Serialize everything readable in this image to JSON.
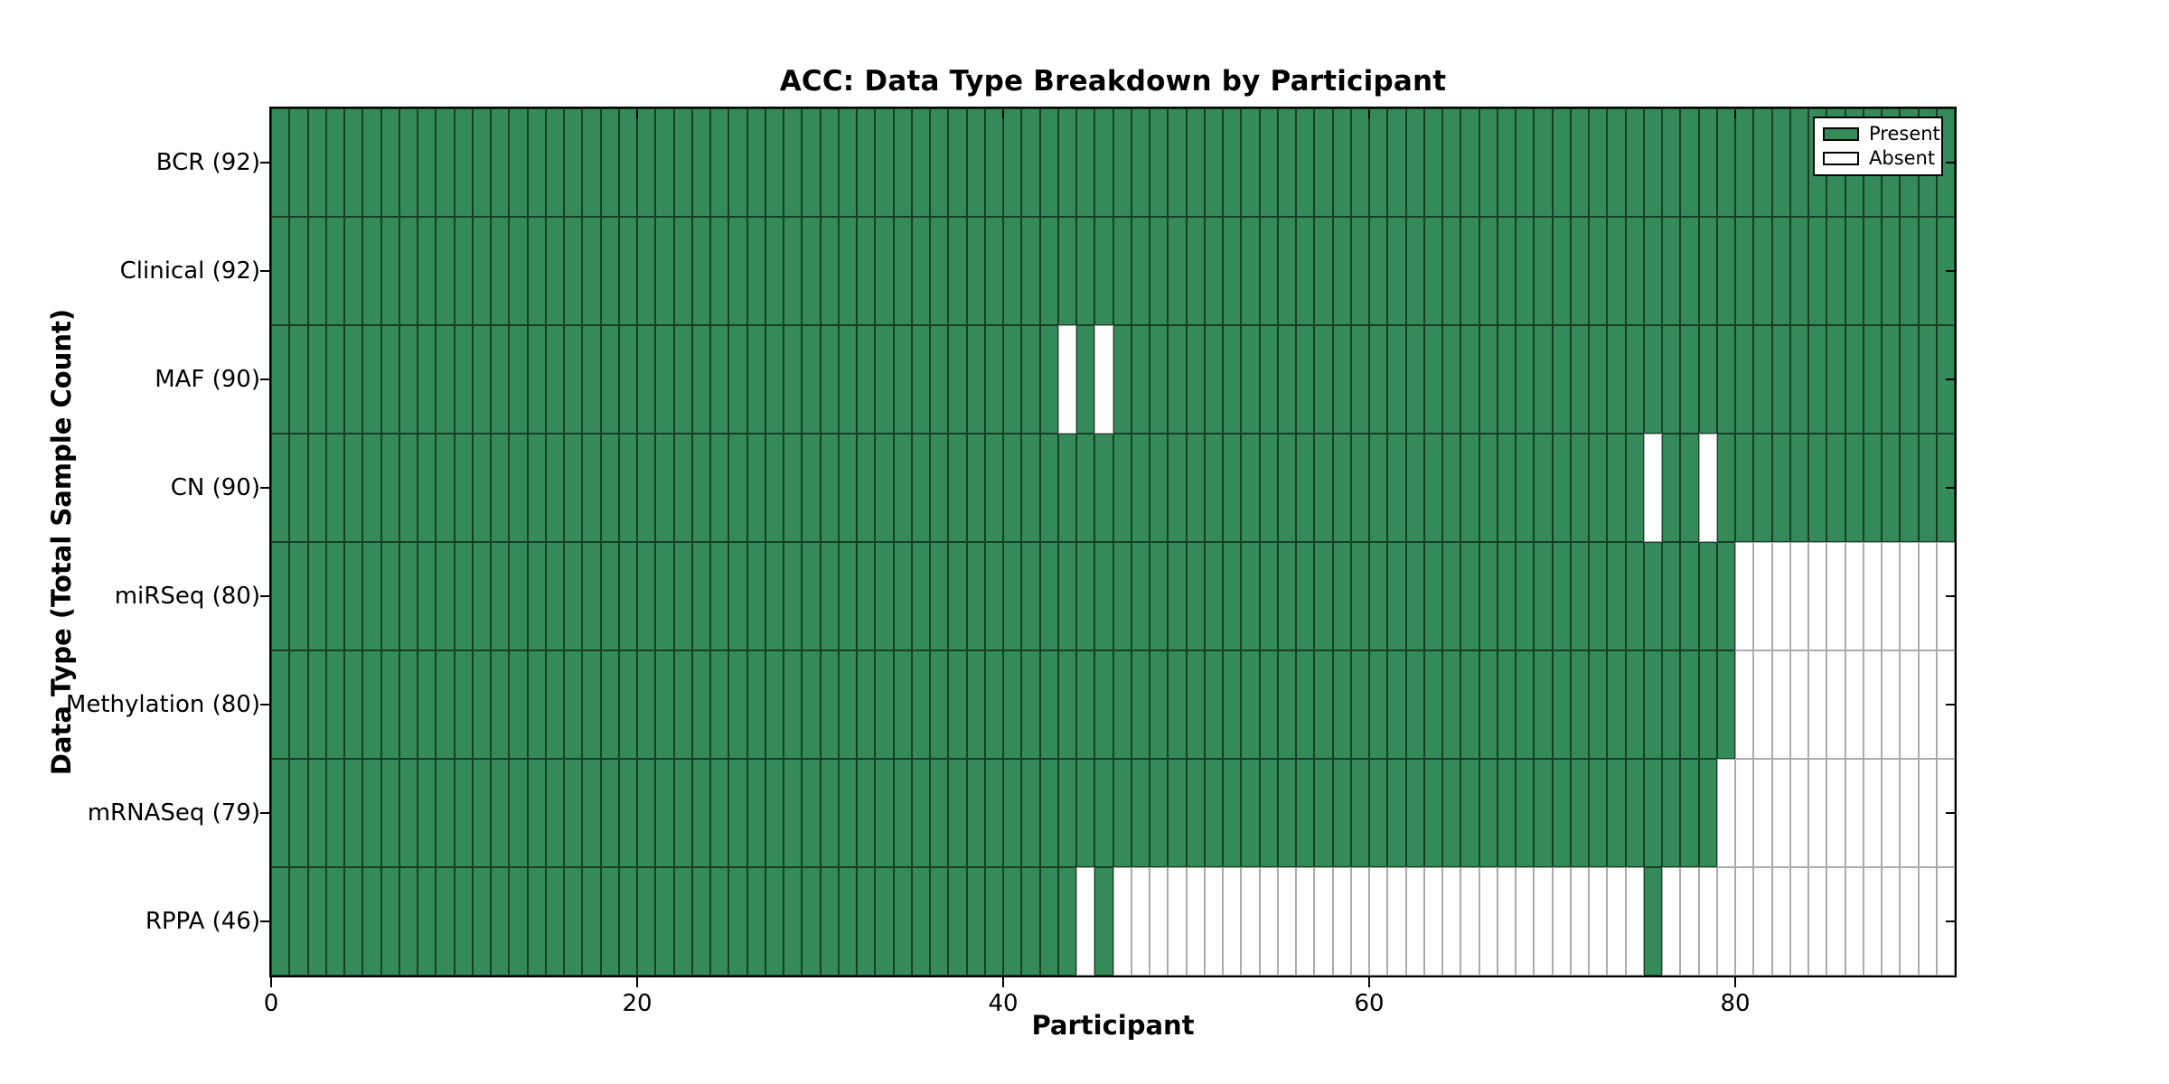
{
  "title": "ACC: Data Type Breakdown by Participant",
  "x_axis": {
    "label": "Participant",
    "tick_values": [
      0,
      20,
      40,
      60,
      80
    ],
    "max": 92
  },
  "y_axis": {
    "label": "Data Type (Total Sample Count)"
  },
  "legend": {
    "present_label": "Present",
    "absent_label": "Absent"
  },
  "colors": {
    "present": "#348a58",
    "absent": "#ffffff",
    "grid_on_present": "rgba(0,0,0,0.55)",
    "grid_on_absent": "#ababab",
    "spine": "#000000"
  },
  "chart_data": {
    "type": "heatmap",
    "title": "ACC: Data Type Breakdown by Participant",
    "xlabel": "Participant",
    "ylabel": "Data Type (Total Sample Count)",
    "x_range": [
      0,
      92
    ],
    "n_participants": 92,
    "legend_entries": [
      "Present",
      "Absent"
    ],
    "legend_position": "upper right",
    "rows": [
      {
        "label": "BCR (92)",
        "total_samples": 92,
        "absent_participants": []
      },
      {
        "label": "Clinical (92)",
        "total_samples": 92,
        "absent_participants": []
      },
      {
        "label": "MAF (90)",
        "total_samples": 90,
        "absent_participants": [
          43,
          45
        ]
      },
      {
        "label": "CN (90)",
        "total_samples": 90,
        "absent_participants": [
          75,
          78
        ]
      },
      {
        "label": "miRSeq (80)",
        "total_samples": 80,
        "absent_participants": [
          80,
          81,
          82,
          83,
          84,
          85,
          86,
          87,
          88,
          89,
          90,
          91
        ]
      },
      {
        "label": "Methylation (80)",
        "total_samples": 80,
        "absent_participants": [
          80,
          81,
          82,
          83,
          84,
          85,
          86,
          87,
          88,
          89,
          90,
          91
        ]
      },
      {
        "label": "mRNASeq (79)",
        "total_samples": 79,
        "absent_participants": [
          79,
          80,
          81,
          82,
          83,
          84,
          85,
          86,
          87,
          88,
          89,
          90,
          91
        ]
      },
      {
        "label": "RPPA (46)",
        "total_samples": 46,
        "absent_participants": [
          44,
          46,
          47,
          48,
          49,
          50,
          51,
          52,
          53,
          54,
          55,
          56,
          57,
          58,
          59,
          60,
          61,
          62,
          63,
          64,
          65,
          66,
          67,
          68,
          69,
          70,
          71,
          72,
          73,
          74,
          76,
          77,
          78,
          79,
          80,
          81,
          82,
          83,
          84,
          85,
          86,
          87,
          88,
          89,
          90,
          91
        ]
      }
    ]
  }
}
